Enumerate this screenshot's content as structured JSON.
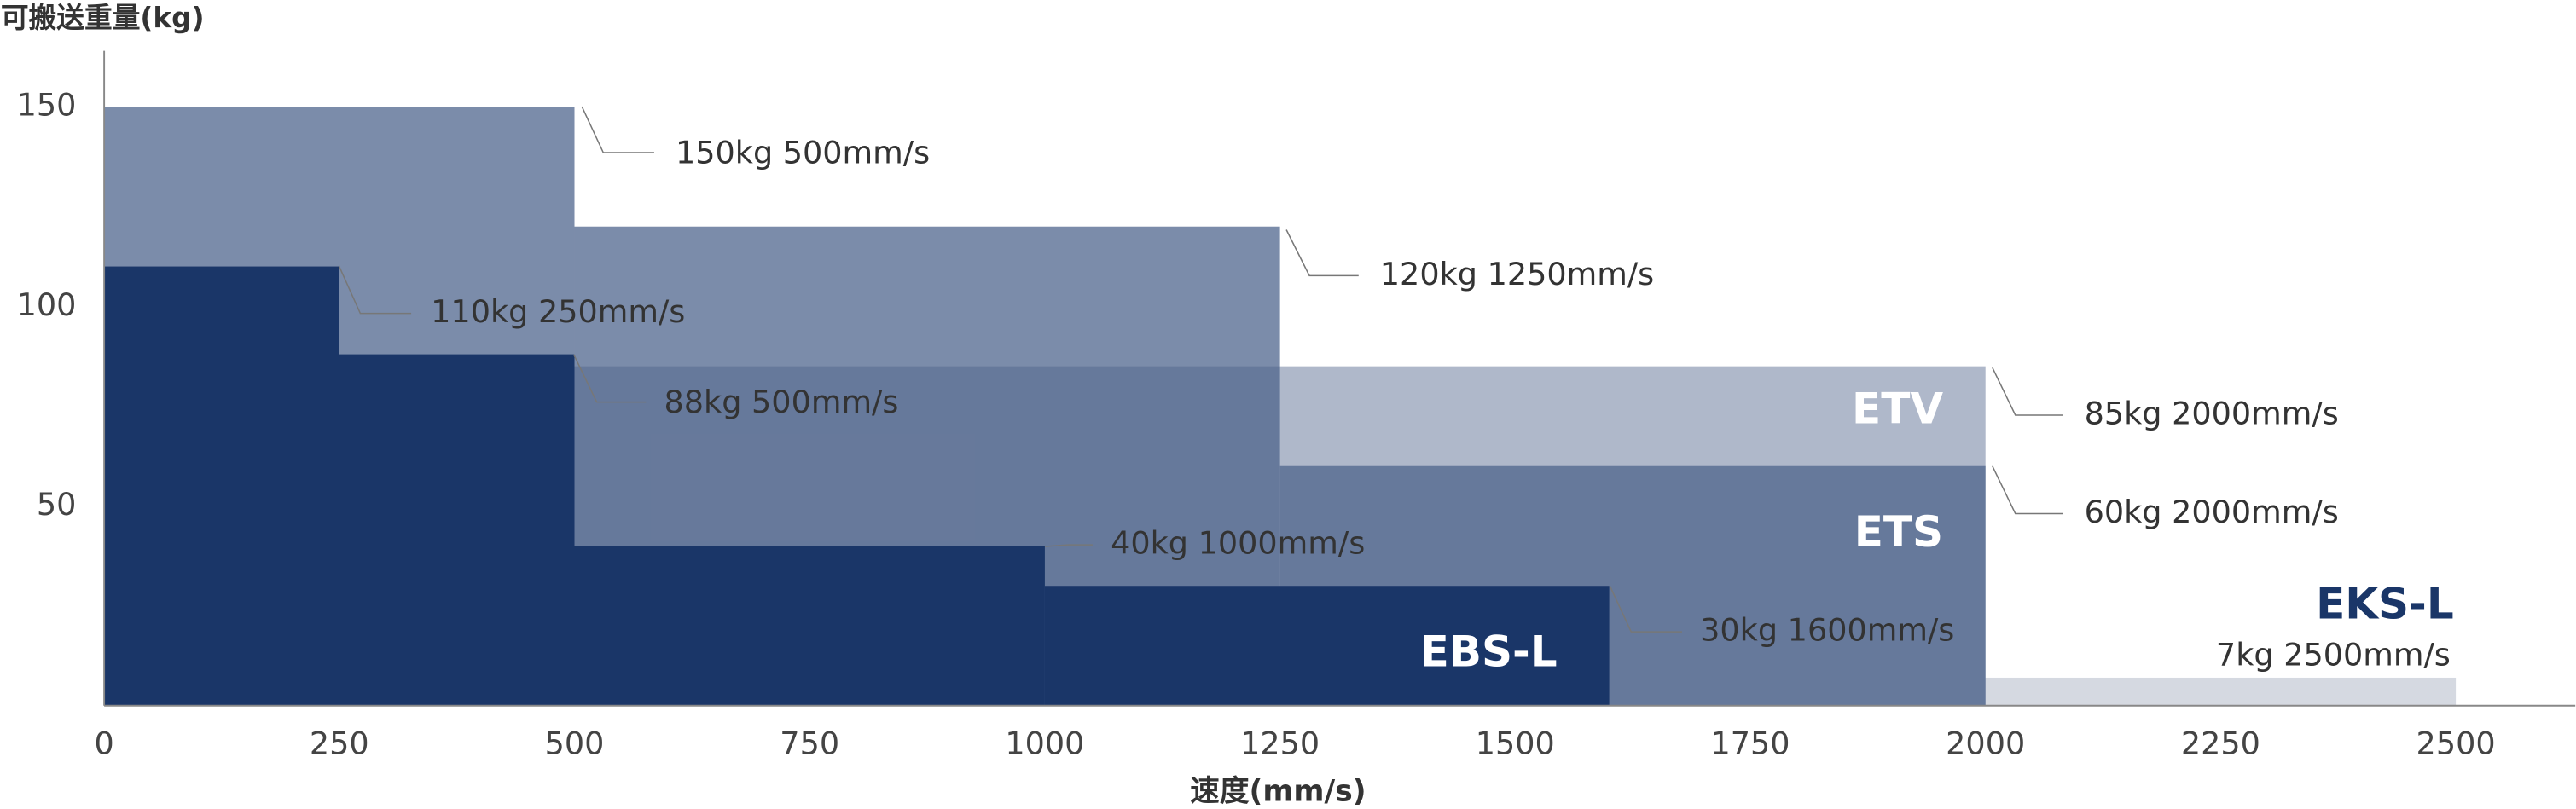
{
  "chart_data": {
    "type": "step-area",
    "ylabel": "可搬送重量(kg)",
    "xlabel": "速度(mm/s)",
    "xlim": [
      0,
      2627
    ],
    "xticks": [
      0,
      250,
      500,
      750,
      1000,
      1250,
      1500,
      1750,
      2000,
      2250,
      2500
    ],
    "ylim": [
      0,
      164
    ],
    "yticks": [
      50,
      100,
      150
    ],
    "series": [
      {
        "name": "EKS-L",
        "color": "#d5d9e1",
        "bins": [
          0,
          2500
        ],
        "values": [
          7
        ]
      },
      {
        "name": "ETS",
        "color": "#7b8caa",
        "bins": [
          0,
          500,
          1250,
          2000
        ],
        "values": [
          150,
          120,
          60
        ]
      },
      {
        "name": "ETV",
        "color": "#4e6289",
        "bins": [
          0,
          2000
        ],
        "values": [
          85
        ]
      },
      {
        "name": "EBS-L",
        "color": "#1a3668",
        "bins": [
          0,
          250,
          500,
          1000,
          1600
        ],
        "values": [
          110,
          88,
          40,
          30
        ]
      }
    ],
    "annotations": [
      "7kg 2500mm/s",
      "150kg 500mm/s",
      "120kg 1250mm/s",
      "60kg 2000mm/s",
      "85kg 2000mm/s",
      "110kg 250mm/s",
      "88kg 500mm/s",
      "40kg 1000mm/s",
      "30kg 1600mm/s"
    ]
  }
}
